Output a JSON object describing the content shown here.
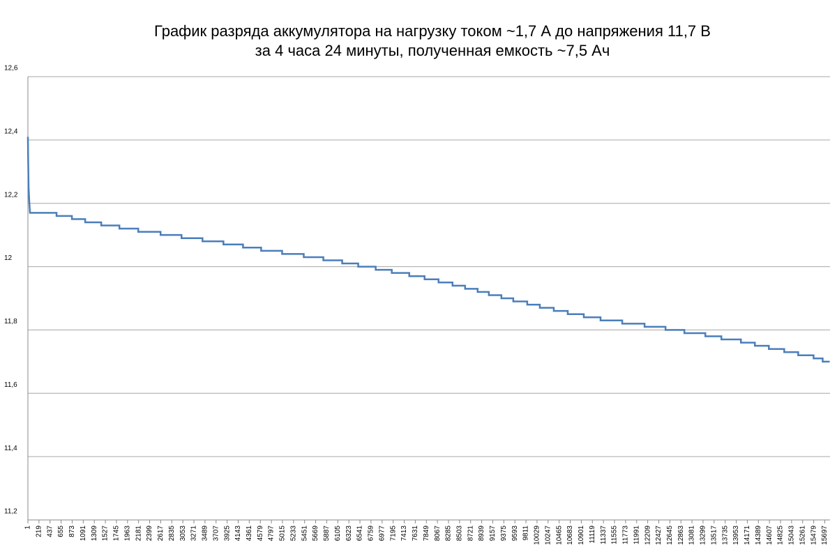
{
  "chart_data": {
    "type": "line",
    "title": [
      "График разряда аккумулятора на нагрузку током ~1,7 А до напряжения 11,7 В",
      "за 4 часа 24 минуты, полученная емкость ~7,5 Ач"
    ],
    "color": "#4a7ebb",
    "grid": true,
    "x": [
      1,
      5,
      15,
      30,
      42,
      565,
      565,
      868,
      868,
      1129,
      1129,
      1445,
      1445,
      1803,
      1803,
      2174,
      2174,
      2614,
      2614,
      3027,
      3027,
      3440,
      3440,
      3852,
      3852,
      4238,
      4238,
      4595,
      4595,
      5008,
      5008,
      5434,
      5434,
      5820,
      5820,
      6191,
      6191,
      6507,
      6507,
      6851,
      6851,
      7168,
      7168,
      7512,
      7512,
      7814,
      7814,
      8089,
      8089,
      8364,
      8364,
      8612,
      8612,
      8859,
      8859,
      9080,
      9080,
      9327,
      9327,
      9561,
      9561,
      9836,
      9836,
      10084,
      10084,
      10359,
      10359,
      10634,
      10634,
      10950,
      10950,
      11280,
      11280,
      11707,
      11707,
      12147,
      12147,
      12560,
      12560,
      12931,
      12931,
      13344,
      13344,
      13660,
      13660,
      14045,
      14045,
      14320,
      14320,
      14595,
      14595,
      14898,
      14898,
      15173,
      15173,
      15476,
      15476,
      15655,
      15655,
      15793
    ],
    "values": [
      12.41,
      12.35,
      12.25,
      12.2,
      12.17,
      12.17,
      12.16,
      12.16,
      12.15,
      12.15,
      12.14,
      12.14,
      12.13,
      12.13,
      12.12,
      12.12,
      12.11,
      12.11,
      12.1,
      12.1,
      12.09,
      12.09,
      12.08,
      12.08,
      12.07,
      12.07,
      12.06,
      12.06,
      12.05,
      12.05,
      12.04,
      12.04,
      12.03,
      12.03,
      12.02,
      12.02,
      12.01,
      12.01,
      12,
      12,
      11.99,
      11.99,
      11.98,
      11.98,
      11.97,
      11.97,
      11.96,
      11.96,
      11.95,
      11.95,
      11.94,
      11.94,
      11.93,
      11.93,
      11.92,
      11.92,
      11.91,
      11.91,
      11.9,
      11.9,
      11.89,
      11.89,
      11.88,
      11.88,
      11.87,
      11.87,
      11.86,
      11.86,
      11.85,
      11.85,
      11.84,
      11.84,
      11.83,
      11.83,
      11.82,
      11.82,
      11.81,
      11.81,
      11.8,
      11.8,
      11.79,
      11.79,
      11.78,
      11.78,
      11.77,
      11.77,
      11.76,
      11.76,
      11.75,
      11.75,
      11.74,
      11.74,
      11.73,
      11.73,
      11.72,
      11.72,
      11.71,
      11.71,
      11.7,
      11.7
    ],
    "xlim": [
      1,
      15800
    ],
    "xticks": [
      1,
      219,
      437,
      655,
      873,
      1091,
      1309,
      1527,
      1745,
      1963,
      2181,
      2399,
      2617,
      2835,
      3053,
      3271,
      3489,
      3707,
      3925,
      4143,
      4361,
      4579,
      4797,
      5015,
      5233,
      5451,
      5669,
      5887,
      6105,
      6323,
      6541,
      6759,
      6977,
      7195,
      7413,
      7631,
      7849,
      8067,
      8285,
      8503,
      8721,
      8939,
      9157,
      9375,
      9593,
      9811,
      10029,
      10247,
      10465,
      10683,
      10901,
      11119,
      11337,
      11555,
      11773,
      11991,
      12209,
      12427,
      12645,
      12863,
      13081,
      13299,
      13517,
      13735,
      13953,
      14171,
      14389,
      14607,
      14825,
      15043,
      15261,
      15479,
      15697
    ],
    "ylim": [
      11.2,
      12.6
    ],
    "yticks": [
      {
        "value": 11.2,
        "label": "11,2"
      },
      {
        "value": 11.4,
        "label": "11,4"
      },
      {
        "value": 11.6,
        "label": "11,6"
      },
      {
        "value": 11.8,
        "label": "11,8"
      },
      12,
      {
        "value": 12.2,
        "label": "12,2"
      },
      {
        "value": 12.4,
        "label": "12,4"
      },
      {
        "value": 12.6,
        "label": "12,6"
      }
    ]
  }
}
